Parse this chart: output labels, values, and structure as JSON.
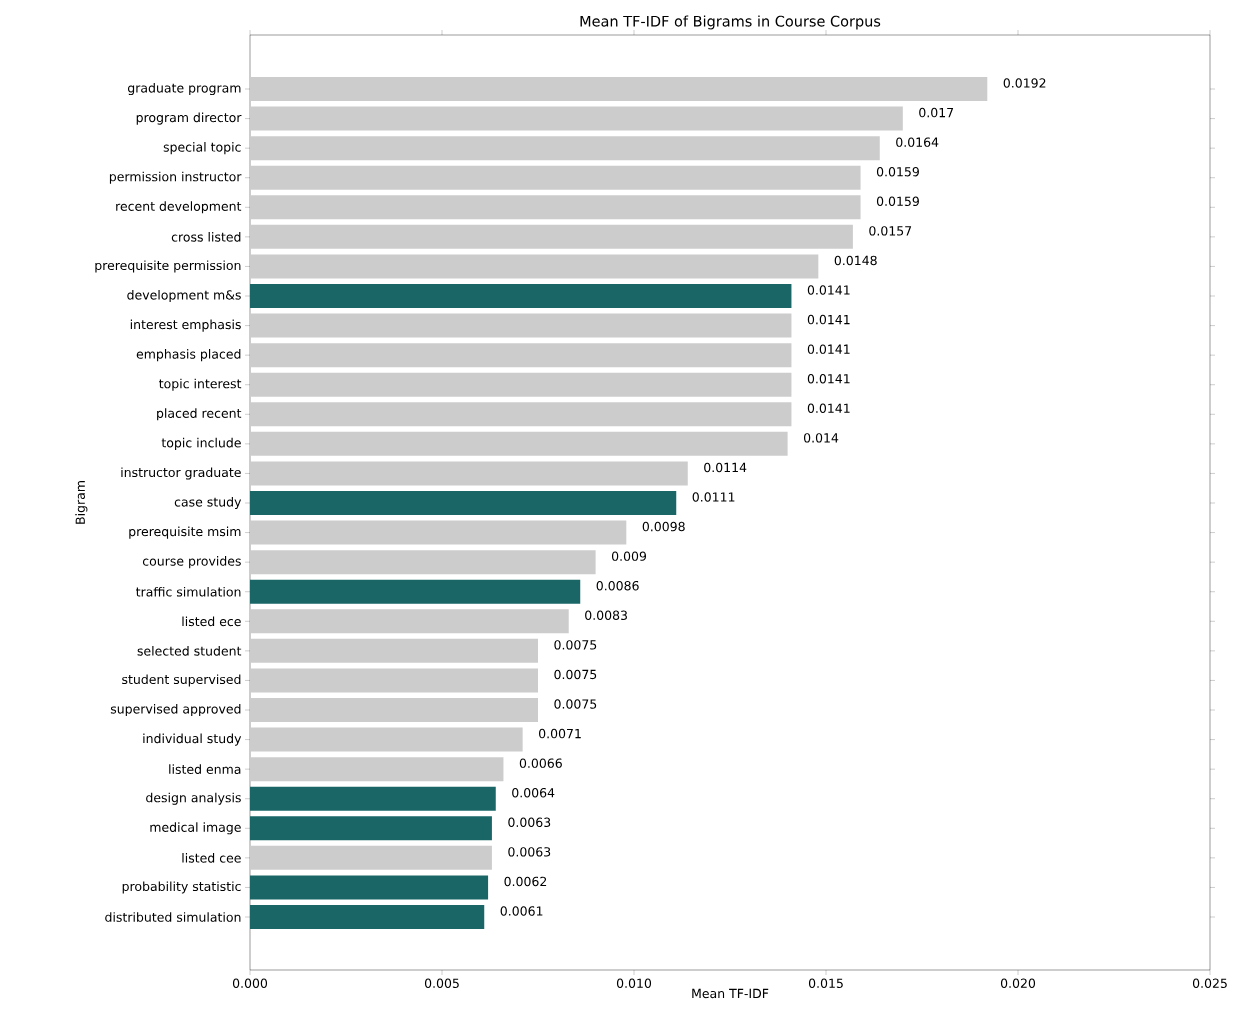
{
  "chart_data": {
    "type": "bar",
    "orientation": "horizontal",
    "title": "Mean TF-IDF of Bigrams in Course Corpus",
    "xlabel": "Mean TF-IDF",
    "ylabel": "Bigram",
    "categories": [
      "graduate program",
      "program director",
      "special topic",
      "permission instructor",
      "recent development",
      "cross listed",
      "prerequisite permission",
      "development m&s",
      "interest emphasis",
      "emphasis placed",
      "topic interest",
      "placed recent",
      "topic include",
      "instructor graduate",
      "case study",
      "prerequisite msim",
      "course provides",
      "traffic simulation",
      "listed ece",
      "selected student",
      "student supervised",
      "supervised approved",
      "individual study",
      "listed enma",
      "design analysis",
      "medical image",
      "listed cee",
      "probability statistic",
      "distributed simulation"
    ],
    "values": [
      0.0192,
      0.017,
      0.0164,
      0.0159,
      0.0159,
      0.0157,
      0.0148,
      0.0141,
      0.0141,
      0.0141,
      0.0141,
      0.0141,
      0.014,
      0.0114,
      0.0111,
      0.0098,
      0.009,
      0.0086,
      0.0083,
      0.0075,
      0.0075,
      0.0075,
      0.0071,
      0.0066,
      0.0064,
      0.0063,
      0.0063,
      0.0062,
      0.0061
    ],
    "colors": [
      "#cccccc",
      "#cccccc",
      "#cccccc",
      "#cccccc",
      "#cccccc",
      "#cccccc",
      "#cccccc",
      "#1a6666",
      "#cccccc",
      "#cccccc",
      "#cccccc",
      "#cccccc",
      "#cccccc",
      "#cccccc",
      "#1a6666",
      "#cccccc",
      "#cccccc",
      "#1a6666",
      "#cccccc",
      "#cccccc",
      "#cccccc",
      "#cccccc",
      "#cccccc",
      "#cccccc",
      "#1a6666",
      "#1a6666",
      "#cccccc",
      "#1a6666",
      "#1a6666"
    ],
    "data_labels": true,
    "xlim": [
      0,
      0.025
    ],
    "xticks": [
      {
        "value": 0,
        "label": "0.000"
      },
      {
        "value": 0.005,
        "label": "0.005"
      },
      {
        "value": 0.01,
        "label": "0.010"
      },
      {
        "value": 0.015,
        "label": "0.015"
      },
      {
        "value": 0.02,
        "label": "0.020"
      },
      {
        "value": 0.025,
        "label": "0.025"
      }
    ]
  }
}
